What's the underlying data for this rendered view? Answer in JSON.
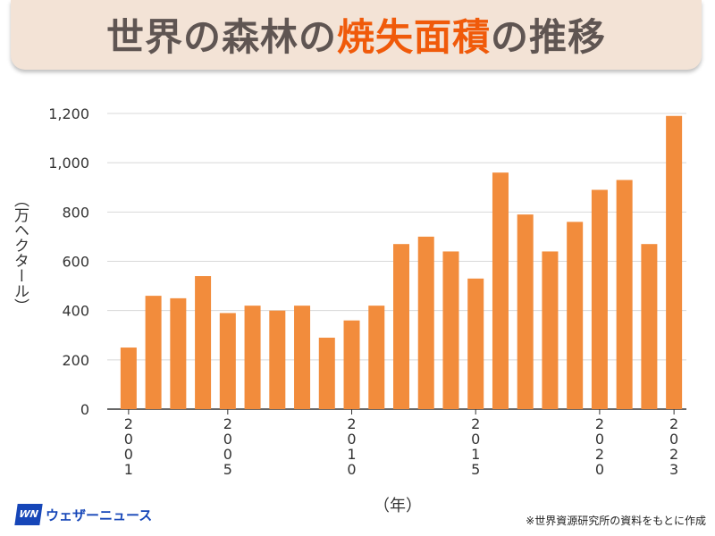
{
  "title": {
    "part1": "世界の森林の",
    "highlight": "焼失面積",
    "part2": "の推移"
  },
  "logo": {
    "mark": "WN",
    "text": "ウェザーニュース"
  },
  "source": "※世界資源研究所の資料をもとに作成",
  "chart_data": {
    "type": "bar",
    "title": "世界の森林の焼失面積の推移",
    "xlabel": "（年）",
    "ylabel": "（万ヘクタール）",
    "ylim": [
      0,
      1200
    ],
    "yticks": [
      0,
      200,
      400,
      600,
      800,
      1000,
      1200
    ],
    "ytick_labels": [
      "0",
      "200",
      "400",
      "600",
      "800",
      "1,000",
      "1,200"
    ],
    "categories": [
      2001,
      2002,
      2003,
      2004,
      2005,
      2006,
      2007,
      2008,
      2009,
      2010,
      2011,
      2012,
      2013,
      2014,
      2015,
      2016,
      2017,
      2018,
      2019,
      2020,
      2021,
      2022,
      2023
    ],
    "xtick_labels": {
      "0": "2001",
      "4": "2005",
      "9": "2010",
      "14": "2015",
      "19": "2020",
      "22": "2023"
    },
    "values": [
      250,
      460,
      450,
      540,
      390,
      420,
      400,
      420,
      290,
      360,
      420,
      670,
      700,
      640,
      530,
      960,
      790,
      640,
      760,
      890,
      930,
      670,
      1190
    ],
    "bar_color": "#f28c3c",
    "grid": true
  }
}
